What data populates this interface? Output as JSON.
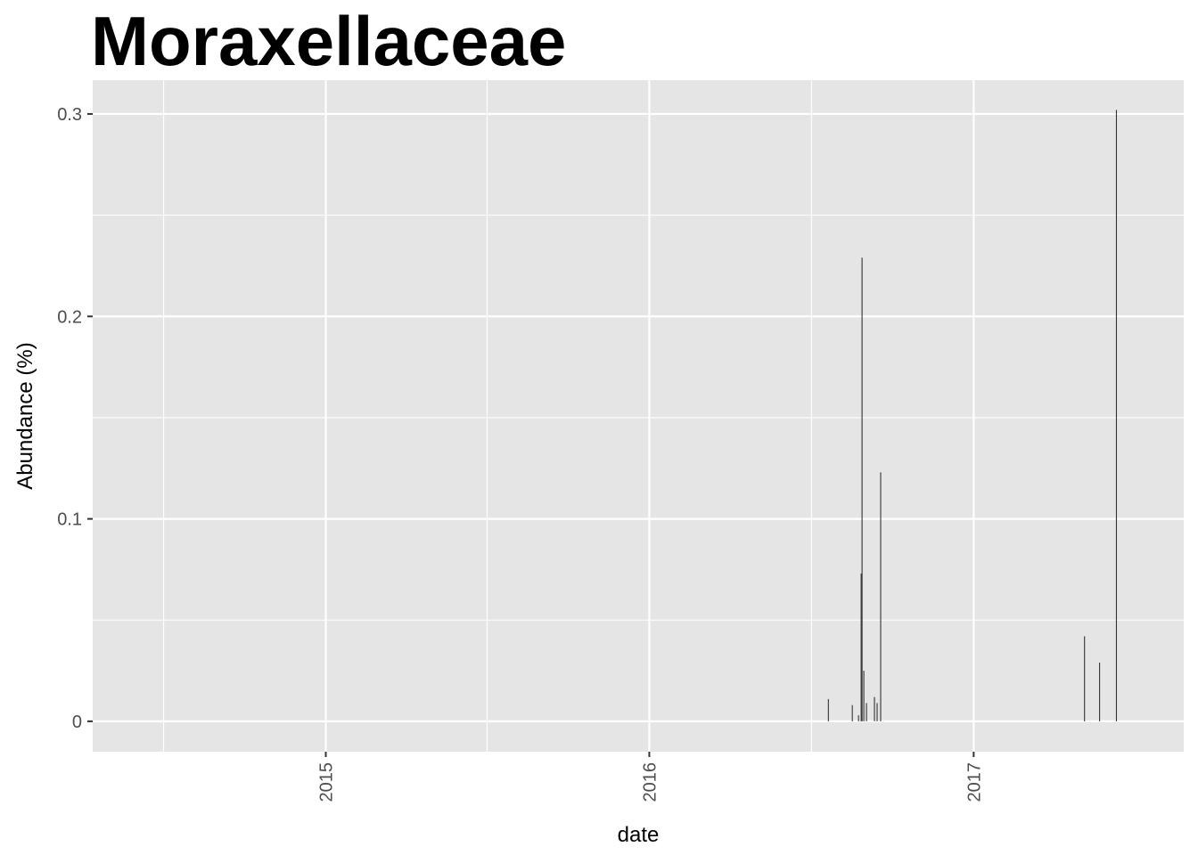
{
  "chart_data": {
    "type": "bar",
    "title": "Moraxellaceae",
    "xlabel": "date",
    "ylabel": "Abundance (%)",
    "ylim": [
      -0.015,
      0.3167
    ],
    "xlim": [
      "2014-04-13",
      "2017-08-26"
    ],
    "grid": true,
    "background": "#e5e5e5",
    "grid_color": "#ffffff",
    "bar_color": "#333333",
    "y_ticks": [
      {
        "value": 0,
        "label": "0"
      },
      {
        "value": 0.1,
        "label": "0.1"
      },
      {
        "value": 0.2,
        "label": "0.2"
      },
      {
        "value": 0.3,
        "label": "0.3"
      }
    ],
    "y_minor": [
      0.05,
      0.15,
      0.25
    ],
    "x_ticks": [
      {
        "date": "2015-01-01",
        "label": "2015"
      },
      {
        "date": "2016-01-01",
        "label": "2016"
      },
      {
        "date": "2017-01-01",
        "label": "2017"
      }
    ],
    "x_minor": [
      "2014-07-02",
      "2015-07-02",
      "2016-07-02"
    ],
    "bars": [
      {
        "date": "2016-07-21",
        "value": 0.011
      },
      {
        "date": "2016-08-17",
        "value": 0.008
      },
      {
        "date": "2016-08-24",
        "value": 0.003
      },
      {
        "date": "2016-08-27",
        "value": 0.073
      },
      {
        "date": "2016-08-28",
        "value": 0.229
      },
      {
        "date": "2016-08-30",
        "value": 0.025
      },
      {
        "date": "2016-09-02",
        "value": 0.009
      },
      {
        "date": "2016-09-11",
        "value": 0.012
      },
      {
        "date": "2016-09-14",
        "value": 0.009
      },
      {
        "date": "2016-09-18",
        "value": 0.123
      },
      {
        "date": "2017-05-06",
        "value": 0.042
      },
      {
        "date": "2017-05-23",
        "value": 0.029
      },
      {
        "date": "2017-06-11",
        "value": 0.302
      }
    ]
  }
}
